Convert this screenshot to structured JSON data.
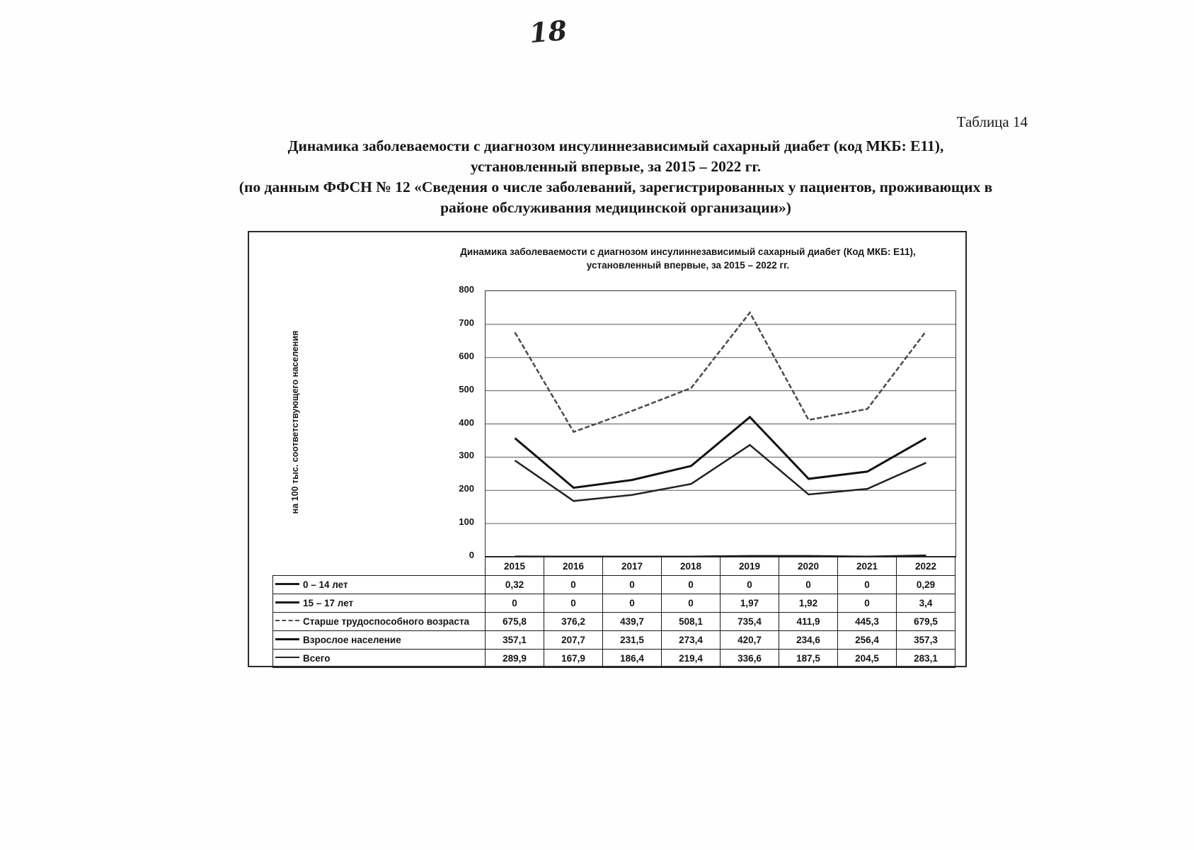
{
  "page": {
    "page_number": "18",
    "table_label": "Таблица 14",
    "title_line1": "Динамика заболеваемости с диагнозом инсулиннезависимый сахарный диабет (код МКБ: Е11),",
    "title_line2": "установленный впервые, за 2015 – 2022 гг.",
    "subtitle_line1": "(по данным ФФСН № 12 «Сведения о числе заболеваний, зарегистрированных у пациентов, проживающих в",
    "subtitle_line2": "районе обслуживания медицинской организации»)"
  },
  "chart_data": {
    "type": "line",
    "title_line1": "Динамика заболеваемости с диагнозом инсулиннезависимый сахарный диабет (Код МКБ: Е11),",
    "title_line2": "установленный впервые, за 2015 – 2022 гг.",
    "ylabel": "на 100 тыс. соответствующего населения",
    "categories": [
      "2015",
      "2016",
      "2017",
      "2018",
      "2019",
      "2020",
      "2021",
      "2022"
    ],
    "ylim": [
      0,
      800
    ],
    "yticks": [
      800,
      700,
      600,
      500,
      400,
      300,
      200,
      100,
      0
    ],
    "grid": true,
    "legend_position": "table-left",
    "axis_color": "#333333",
    "grid_color": "#5a5a5a",
    "series": [
      {
        "name": "0 – 14 лет",
        "values": [
          0.32,
          0,
          0,
          0,
          0,
          0,
          0,
          0.29
        ],
        "display": [
          "0,32",
          "0",
          "0",
          "0",
          "0",
          "0",
          "0",
          "0,29"
        ],
        "color": "#1a1a1a",
        "width": 3,
        "dash": ""
      },
      {
        "name": "15 – 17 лет",
        "values": [
          0,
          0,
          0,
          0,
          1.97,
          1.92,
          0,
          3.4
        ],
        "display": [
          "0",
          "0",
          "0",
          "0",
          "1,97",
          "1,92",
          "0",
          "3,4"
        ],
        "color": "#1a1a1a",
        "width": 3,
        "dash": ""
      },
      {
        "name": "Старше трудоспособного возраста",
        "values": [
          675.8,
          376.2,
          439.7,
          508.1,
          735.4,
          411.9,
          445.3,
          679.5
        ],
        "display": [
          "675,8",
          "376,2",
          "439,7",
          "508,1",
          "735,4",
          "411,9",
          "445,3",
          "679,5"
        ],
        "color": "#4a4a4a",
        "width": 2.5,
        "dash": "7 3"
      },
      {
        "name": "Взрослое население",
        "values": [
          357.1,
          207.7,
          231.5,
          273.4,
          420.7,
          234.6,
          256.4,
          357.3
        ],
        "display": [
          "357,1",
          "207,7",
          "231,5",
          "273,4",
          "420,7",
          "234,6",
          "256,4",
          "357,3"
        ],
        "color": "#111111",
        "width": 3,
        "dash": ""
      },
      {
        "name": "Всего",
        "values": [
          289.9,
          167.9,
          186.4,
          219.4,
          336.6,
          187.5,
          204.5,
          283.1
        ],
        "display": [
          "289,9",
          "167,9",
          "186,4",
          "219,4",
          "336,6",
          "187,5",
          "204,5",
          "283,1"
        ],
        "color": "#222222",
        "width": 2.5,
        "dash": ""
      }
    ]
  }
}
